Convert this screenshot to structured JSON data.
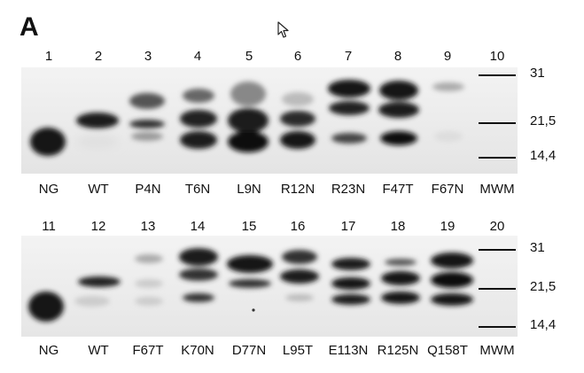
{
  "panel": {
    "letter": "A"
  },
  "cursor_icon": "mouse-pointer-icon",
  "blots": [
    {
      "lanes": [
        {
          "number": "1",
          "label": "NG"
        },
        {
          "number": "2",
          "label": "WT"
        },
        {
          "number": "3",
          "label": "P4N"
        },
        {
          "number": "4",
          "label": "T6N"
        },
        {
          "number": "5",
          "label": "L9N"
        },
        {
          "number": "6",
          "label": "R12N"
        },
        {
          "number": "7",
          "label": "R23N"
        },
        {
          "number": "8",
          "label": "F47T"
        },
        {
          "number": "9",
          "label": "F67N"
        },
        {
          "number": "10",
          "label": "MWM"
        }
      ],
      "markers": [
        "31",
        "21,5",
        "14,4"
      ]
    },
    {
      "lanes": [
        {
          "number": "11",
          "label": "NG"
        },
        {
          "number": "12",
          "label": "WT"
        },
        {
          "number": "13",
          "label": "F67T"
        },
        {
          "number": "14",
          "label": "K70N"
        },
        {
          "number": "15",
          "label": "D77N"
        },
        {
          "number": "16",
          "label": "L95T"
        },
        {
          "number": "17",
          "label": "E113N"
        },
        {
          "number": "18",
          "label": "R125N"
        },
        {
          "number": "19",
          "label": "Q158T"
        },
        {
          "number": "20",
          "label": "MWM"
        }
      ],
      "markers": [
        "31",
        "21,5",
        "14,4"
      ]
    }
  ]
}
